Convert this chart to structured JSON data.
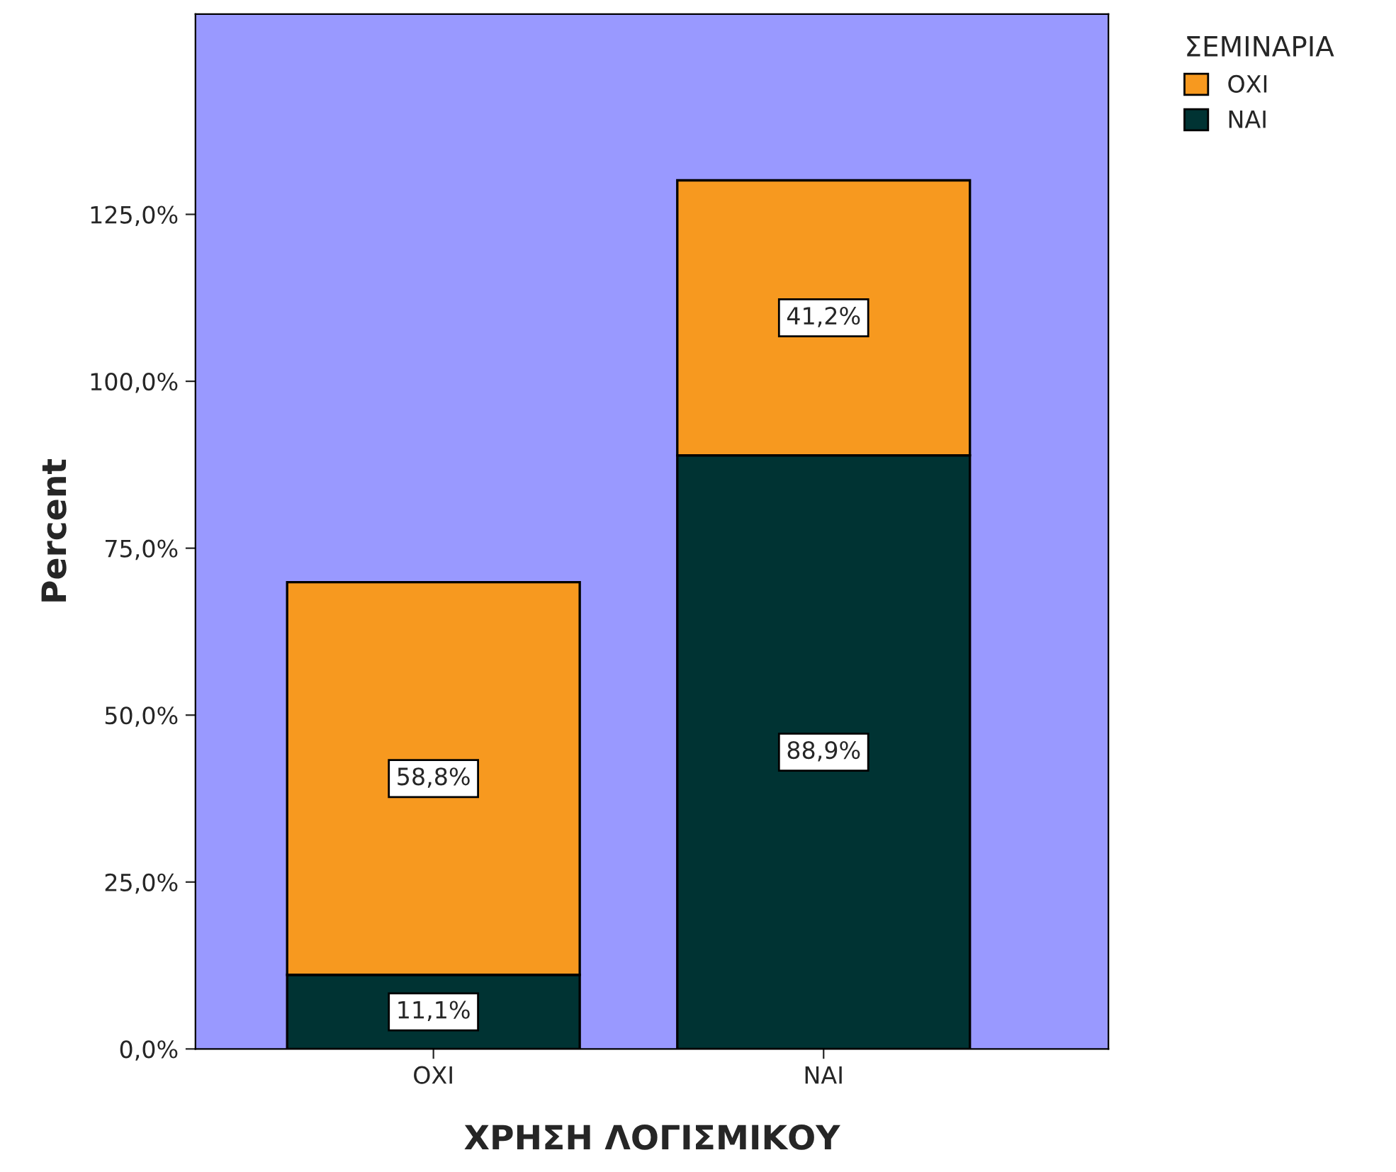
{
  "chart_data": {
    "type": "bar",
    "stacked": true,
    "xlabel": "ΧΡΗΣΗ ΛΟΓΙΣΜΙΚΟΥ",
    "ylabel": "Percent",
    "legend_title": "ΣΕΜΙΝΑΡΙΑ",
    "legend": "top right",
    "grid": false,
    "categories": [
      "ΟΧΙ",
      "ΝΑΙ"
    ],
    "ylim": [
      0,
      155
    ],
    "yticks": [
      {
        "value": 0,
        "label": "0,0%"
      },
      {
        "value": 25,
        "label": "25,0%"
      },
      {
        "value": 50,
        "label": "50,0%"
      },
      {
        "value": 75,
        "label": "75,0%"
      },
      {
        "value": 100,
        "label": "100,0%"
      },
      {
        "value": 125,
        "label": "125,0%"
      }
    ],
    "series": [
      {
        "name": "ΝΑΙ",
        "color": "#003333",
        "values": [
          11.1,
          88.9
        ],
        "value_labels": [
          "11,1%",
          "88,9%"
        ]
      },
      {
        "name": "ΟΧΙ",
        "color": "#f7991f",
        "values": [
          58.8,
          41.2
        ],
        "value_labels": [
          "58,8%",
          "41,2%"
        ]
      }
    ]
  }
}
